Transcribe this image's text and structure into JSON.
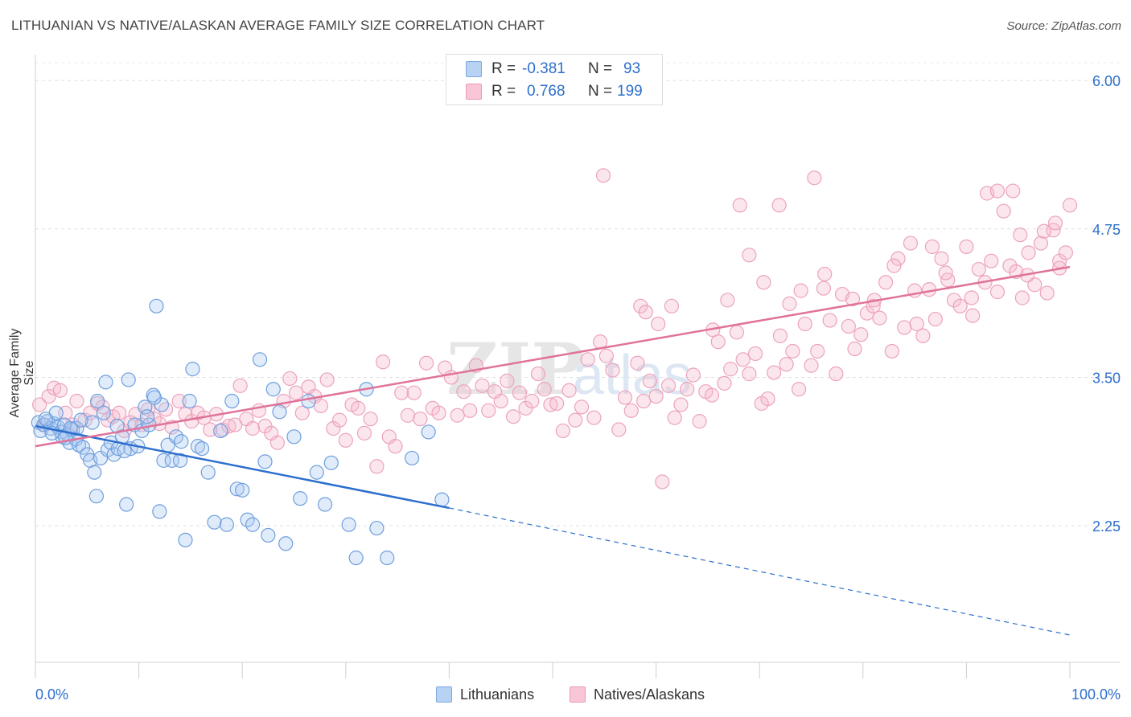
{
  "header": {
    "title": "LITHUANIAN VS NATIVE/ALASKAN AVERAGE FAMILY SIZE CORRELATION CHART",
    "source": "Source: ZipAtlas.com"
  },
  "colors": {
    "blue": "#2d6fcc",
    "blue_fill": "#a9c8f0",
    "pink": "#e07399",
    "pink_fill": "#f6b8cc",
    "grid": "#e2e2e2",
    "tick_label": "#2d6fcc"
  },
  "legend": {
    "rows": [
      {
        "r_label": "R = ",
        "r_value": "-0.381",
        "n_label": "N = ",
        "n_value": "93"
      },
      {
        "r_label": "R = ",
        "r_value": "0.768",
        "n_label": "N = ",
        "n_value": "199"
      }
    ]
  },
  "bottom_legend": {
    "items": [
      "Lithuanians",
      "Natives/Alaskans"
    ]
  },
  "chart_data": {
    "type": "scatter",
    "ylabel": "Average Family Size",
    "xlim": [
      0,
      100
    ],
    "ylim": [
      1.1,
      6.15
    ],
    "x_tick_labels": [
      "0.0%",
      "100.0%"
    ],
    "y_ticks": [
      2.25,
      3.5,
      4.75,
      6.0
    ],
    "y_tick_labels": [
      "2.25",
      "3.50",
      "4.75",
      "6.00"
    ],
    "grid": true,
    "legend_position": "top-center",
    "series": [
      {
        "name": "Lithuanians",
        "color": "#2d6fcc",
        "R": -0.381,
        "N": 93,
        "trend": {
          "x0": 0,
          "y0": 3.09,
          "x1": 40,
          "y1": 2.4,
          "dashed_to_x": 100,
          "dashed_to_y": 1.33
        },
        "points": [
          [
            0.3,
            3.12
          ],
          [
            0.5,
            3.05
          ],
          [
            0.8,
            3.1
          ],
          [
            1.2,
            3.13
          ],
          [
            1.5,
            3.07
          ],
          [
            1.8,
            3.11
          ],
          [
            2.0,
            3.2
          ],
          [
            2.2,
            3.08
          ],
          [
            2.5,
            3.04
          ],
          [
            2.8,
            3.1
          ],
          [
            3.1,
            3.02
          ],
          [
            3.3,
            2.95
          ],
          [
            3.6,
            3.06
          ],
          [
            3.9,
            2.98
          ],
          [
            4.2,
            2.93
          ],
          [
            4.6,
            2.91
          ],
          [
            5.0,
            2.85
          ],
          [
            5.3,
            2.8
          ],
          [
            5.7,
            2.7
          ],
          [
            5.9,
            2.5
          ],
          [
            6.3,
            2.82
          ],
          [
            6.6,
            3.2
          ],
          [
            7.0,
            2.89
          ],
          [
            7.3,
            2.95
          ],
          [
            7.6,
            2.85
          ],
          [
            8.0,
            2.9
          ],
          [
            8.4,
            3.0
          ],
          [
            8.8,
            2.43
          ],
          [
            9.2,
            2.9
          ],
          [
            9.6,
            3.1
          ],
          [
            9.9,
            2.92
          ],
          [
            10.3,
            3.05
          ],
          [
            10.6,
            3.25
          ],
          [
            11.0,
            3.1
          ],
          [
            11.4,
            3.35
          ],
          [
            11.7,
            4.1
          ],
          [
            12.0,
            2.37
          ],
          [
            12.4,
            2.8
          ],
          [
            12.8,
            2.93
          ],
          [
            13.2,
            2.8
          ],
          [
            13.6,
            3.0
          ],
          [
            14.0,
            2.8
          ],
          [
            14.5,
            2.13
          ],
          [
            14.9,
            3.3
          ],
          [
            15.2,
            3.57
          ],
          [
            15.7,
            2.92
          ],
          [
            16.1,
            2.9
          ],
          [
            16.7,
            2.7
          ],
          [
            17.3,
            2.28
          ],
          [
            17.9,
            3.05
          ],
          [
            18.5,
            2.26
          ],
          [
            19.0,
            3.3
          ],
          [
            19.5,
            2.56
          ],
          [
            20.0,
            2.55
          ],
          [
            20.5,
            2.3
          ],
          [
            21.0,
            2.26
          ],
          [
            21.7,
            3.65
          ],
          [
            22.2,
            2.79
          ],
          [
            22.5,
            2.17
          ],
          [
            23.0,
            3.4
          ],
          [
            23.6,
            3.21
          ],
          [
            24.2,
            2.1
          ],
          [
            25.0,
            3.0
          ],
          [
            25.6,
            2.48
          ],
          [
            26.4,
            3.3
          ],
          [
            27.2,
            2.7
          ],
          [
            28.0,
            2.43
          ],
          [
            28.6,
            2.78
          ],
          [
            30.3,
            2.26
          ],
          [
            31.0,
            1.98
          ],
          [
            32.0,
            3.4
          ],
          [
            33.0,
            2.23
          ],
          [
            34.0,
            1.98
          ],
          [
            36.4,
            2.82
          ],
          [
            38.0,
            3.04
          ],
          [
            39.3,
            2.47
          ],
          [
            1.0,
            3.15
          ],
          [
            2.6,
            3.0
          ],
          [
            4.0,
            3.07
          ],
          [
            6.8,
            3.46
          ],
          [
            9.0,
            3.48
          ],
          [
            12.2,
            3.27
          ],
          [
            14.1,
            2.96
          ],
          [
            3.4,
            3.07
          ],
          [
            7.9,
            3.09
          ],
          [
            10.8,
            3.17
          ],
          [
            5.5,
            3.12
          ],
          [
            8.6,
            2.88
          ],
          [
            1.6,
            3.03
          ],
          [
            11.5,
            3.33
          ],
          [
            6.0,
            3.3
          ],
          [
            4.4,
            3.14
          ],
          [
            2.9,
            2.99
          ]
        ]
      },
      {
        "name": "Natives/Alaskans",
        "color": "#e07399",
        "R": 0.768,
        "N": 199,
        "trend": {
          "x0": 0,
          "y0": 2.92,
          "x1": 100,
          "y1": 4.43
        },
        "points": [
          [
            0.4,
            3.27
          ],
          [
            0.9,
            3.1
          ],
          [
            1.3,
            3.34
          ],
          [
            1.8,
            3.41
          ],
          [
            2.4,
            3.39
          ],
          [
            2.9,
            3.2
          ],
          [
            3.6,
            3.1
          ],
          [
            4.0,
            3.3
          ],
          [
            4.8,
            3.14
          ],
          [
            5.3,
            3.2
          ],
          [
            6.0,
            3.28
          ],
          [
            6.5,
            3.25
          ],
          [
            7.0,
            3.14
          ],
          [
            7.5,
            3.17
          ],
          [
            8.1,
            3.2
          ],
          [
            8.6,
            3.05
          ],
          [
            9.2,
            3.12
          ],
          [
            9.7,
            3.19
          ],
          [
            10.3,
            3.1
          ],
          [
            10.9,
            3.23
          ],
          [
            11.5,
            3.15
          ],
          [
            12.0,
            3.11
          ],
          [
            12.6,
            3.23
          ],
          [
            13.2,
            3.08
          ],
          [
            13.9,
            3.3
          ],
          [
            14.5,
            3.19
          ],
          [
            15.1,
            3.13
          ],
          [
            15.7,
            3.2
          ],
          [
            16.3,
            3.16
          ],
          [
            16.9,
            3.06
          ],
          [
            17.5,
            3.19
          ],
          [
            18.1,
            3.06
          ],
          [
            18.7,
            3.09
          ],
          [
            19.3,
            3.1
          ],
          [
            19.8,
            3.43
          ],
          [
            20.4,
            3.15
          ],
          [
            21.0,
            3.07
          ],
          [
            21.6,
            3.22
          ],
          [
            22.2,
            3.09
          ],
          [
            22.8,
            3.03
          ],
          [
            23.4,
            2.95
          ],
          [
            24.0,
            3.3
          ],
          [
            24.6,
            3.49
          ],
          [
            25.2,
            3.37
          ],
          [
            25.8,
            3.2
          ],
          [
            26.4,
            3.42
          ],
          [
            27.0,
            3.34
          ],
          [
            27.6,
            3.26
          ],
          [
            28.2,
            3.48
          ],
          [
            28.8,
            3.07
          ],
          [
            29.4,
            3.14
          ],
          [
            30.0,
            2.97
          ],
          [
            30.6,
            3.27
          ],
          [
            31.2,
            3.24
          ],
          [
            31.8,
            3.03
          ],
          [
            32.4,
            3.15
          ],
          [
            33.0,
            2.75
          ],
          [
            33.6,
            3.63
          ],
          [
            34.2,
            3.0
          ],
          [
            34.8,
            2.92
          ],
          [
            35.4,
            3.37
          ],
          [
            36.0,
            3.18
          ],
          [
            36.6,
            3.37
          ],
          [
            37.2,
            3.15
          ],
          [
            37.8,
            3.62
          ],
          [
            38.4,
            3.24
          ],
          [
            39.0,
            3.2
          ],
          [
            39.6,
            3.58
          ],
          [
            40.2,
            3.5
          ],
          [
            40.8,
            3.18
          ],
          [
            41.4,
            3.38
          ],
          [
            42.0,
            3.22
          ],
          [
            42.6,
            3.6
          ],
          [
            43.2,
            3.43
          ],
          [
            43.8,
            3.22
          ],
          [
            44.4,
            3.38
          ],
          [
            45.0,
            3.3
          ],
          [
            45.6,
            3.47
          ],
          [
            46.2,
            3.17
          ],
          [
            46.8,
            3.37
          ],
          [
            47.4,
            3.24
          ],
          [
            48.0,
            3.3
          ],
          [
            48.6,
            3.53
          ],
          [
            49.2,
            3.4
          ],
          [
            49.8,
            3.27
          ],
          [
            50.4,
            3.28
          ],
          [
            51.0,
            3.05
          ],
          [
            51.6,
            3.39
          ],
          [
            52.2,
            3.14
          ],
          [
            52.8,
            3.25
          ],
          [
            53.4,
            3.65
          ],
          [
            54.0,
            3.16
          ],
          [
            54.6,
            3.8
          ],
          [
            55.2,
            3.68
          ],
          [
            55.8,
            3.56
          ],
          [
            56.4,
            3.06
          ],
          [
            57.0,
            3.33
          ],
          [
            57.6,
            3.22
          ],
          [
            58.2,
            3.62
          ],
          [
            58.8,
            3.3
          ],
          [
            59.4,
            3.47
          ],
          [
            60.0,
            3.34
          ],
          [
            60.6,
            2.62
          ],
          [
            61.2,
            3.43
          ],
          [
            61.8,
            3.16
          ],
          [
            62.4,
            3.27
          ],
          [
            63.0,
            3.4
          ],
          [
            63.6,
            3.52
          ],
          [
            64.2,
            3.13
          ],
          [
            64.8,
            3.38
          ],
          [
            65.4,
            3.35
          ],
          [
            66.0,
            3.8
          ],
          [
            66.6,
            3.45
          ],
          [
            67.2,
            3.57
          ],
          [
            67.8,
            3.88
          ],
          [
            68.4,
            3.65
          ],
          [
            69.0,
            3.53
          ],
          [
            69.6,
            3.7
          ],
          [
            70.2,
            3.28
          ],
          [
            70.8,
            3.32
          ],
          [
            71.4,
            3.54
          ],
          [
            72.0,
            3.85
          ],
          [
            72.6,
            3.61
          ],
          [
            73.2,
            3.72
          ],
          [
            73.8,
            3.4
          ],
          [
            74.4,
            3.95
          ],
          [
            75.0,
            3.6
          ],
          [
            75.6,
            3.72
          ],
          [
            76.2,
            4.25
          ],
          [
            76.8,
            3.98
          ],
          [
            77.4,
            3.53
          ],
          [
            78.0,
            4.2
          ],
          [
            78.6,
            3.93
          ],
          [
            79.2,
            3.74
          ],
          [
            79.8,
            3.86
          ],
          [
            80.4,
            4.04
          ],
          [
            81.0,
            4.1
          ],
          [
            81.6,
            4.0
          ],
          [
            82.2,
            4.3
          ],
          [
            82.8,
            3.72
          ],
          [
            83.4,
            4.5
          ],
          [
            84.0,
            3.92
          ],
          [
            84.6,
            4.63
          ],
          [
            85.2,
            3.95
          ],
          [
            85.8,
            3.85
          ],
          [
            86.4,
            4.24
          ],
          [
            87.0,
            3.99
          ],
          [
            87.6,
            4.5
          ],
          [
            88.2,
            4.32
          ],
          [
            88.8,
            4.15
          ],
          [
            89.4,
            4.1
          ],
          [
            90.0,
            4.6
          ],
          [
            90.6,
            4.02
          ],
          [
            91.2,
            4.41
          ],
          [
            91.8,
            4.3
          ],
          [
            92.4,
            4.48
          ],
          [
            93.0,
            4.22
          ],
          [
            93.6,
            4.9
          ],
          [
            94.2,
            4.44
          ],
          [
            94.8,
            4.39
          ],
          [
            95.4,
            4.17
          ],
          [
            96.0,
            4.55
          ],
          [
            96.6,
            4.28
          ],
          [
            97.2,
            4.63
          ],
          [
            97.8,
            4.21
          ],
          [
            98.4,
            4.74
          ],
          [
            99.0,
            4.48
          ],
          [
            99.6,
            4.55
          ],
          [
            100.0,
            4.95
          ],
          [
            75.3,
            5.18
          ],
          [
            54.9,
            5.2
          ],
          [
            68.1,
            4.95
          ],
          [
            71.9,
            4.95
          ],
          [
            69.0,
            4.53
          ],
          [
            58.5,
            4.1
          ],
          [
            59.0,
            4.05
          ],
          [
            60.2,
            3.95
          ],
          [
            61.5,
            4.1
          ],
          [
            65.5,
            3.9
          ],
          [
            66.9,
            4.15
          ],
          [
            70.4,
            4.3
          ],
          [
            72.9,
            4.12
          ],
          [
            74.0,
            4.23
          ],
          [
            76.3,
            4.37
          ],
          [
            79.0,
            4.16
          ],
          [
            81.1,
            4.15
          ],
          [
            83.0,
            4.44
          ],
          [
            85.0,
            4.23
          ],
          [
            86.7,
            4.6
          ],
          [
            88.0,
            4.38
          ],
          [
            90.5,
            4.17
          ],
          [
            92.0,
            5.05
          ],
          [
            93.0,
            5.07
          ],
          [
            94.5,
            5.07
          ],
          [
            95.9,
            4.36
          ],
          [
            97.5,
            4.73
          ],
          [
            98.6,
            4.8
          ],
          [
            99.0,
            4.42
          ],
          [
            95.2,
            4.7
          ]
        ]
      }
    ]
  }
}
